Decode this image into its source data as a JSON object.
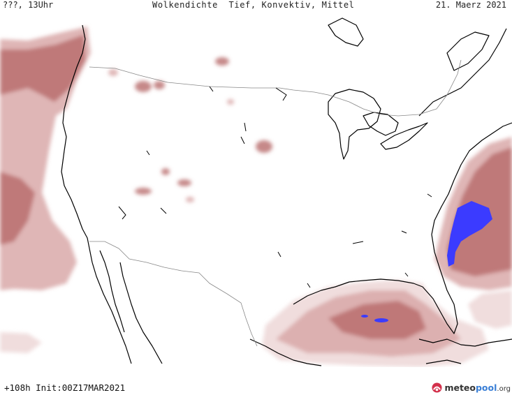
{
  "header": {
    "left": "???, 13Uhr",
    "title": "Wolkendichte  Tief, Konvektiv, Mittel",
    "date": "21. Maerz 2021"
  },
  "footer": {
    "forecast": "+108h Init:00Z17MAR2021",
    "logo_name": "meteo",
    "logo_name_accent": "pool",
    "logo_tld": ".org"
  },
  "map": {
    "region": "Contiguous United States",
    "colors": {
      "cloud_light": "#eed9d9",
      "cloud_mid": "#d9a9a9",
      "cloud_dark": "#b86a6a",
      "cloud_very_dark": "#9e4a4a",
      "cloud_max": "#3b3bff",
      "coastline": "#000000",
      "border": "#888888"
    }
  }
}
